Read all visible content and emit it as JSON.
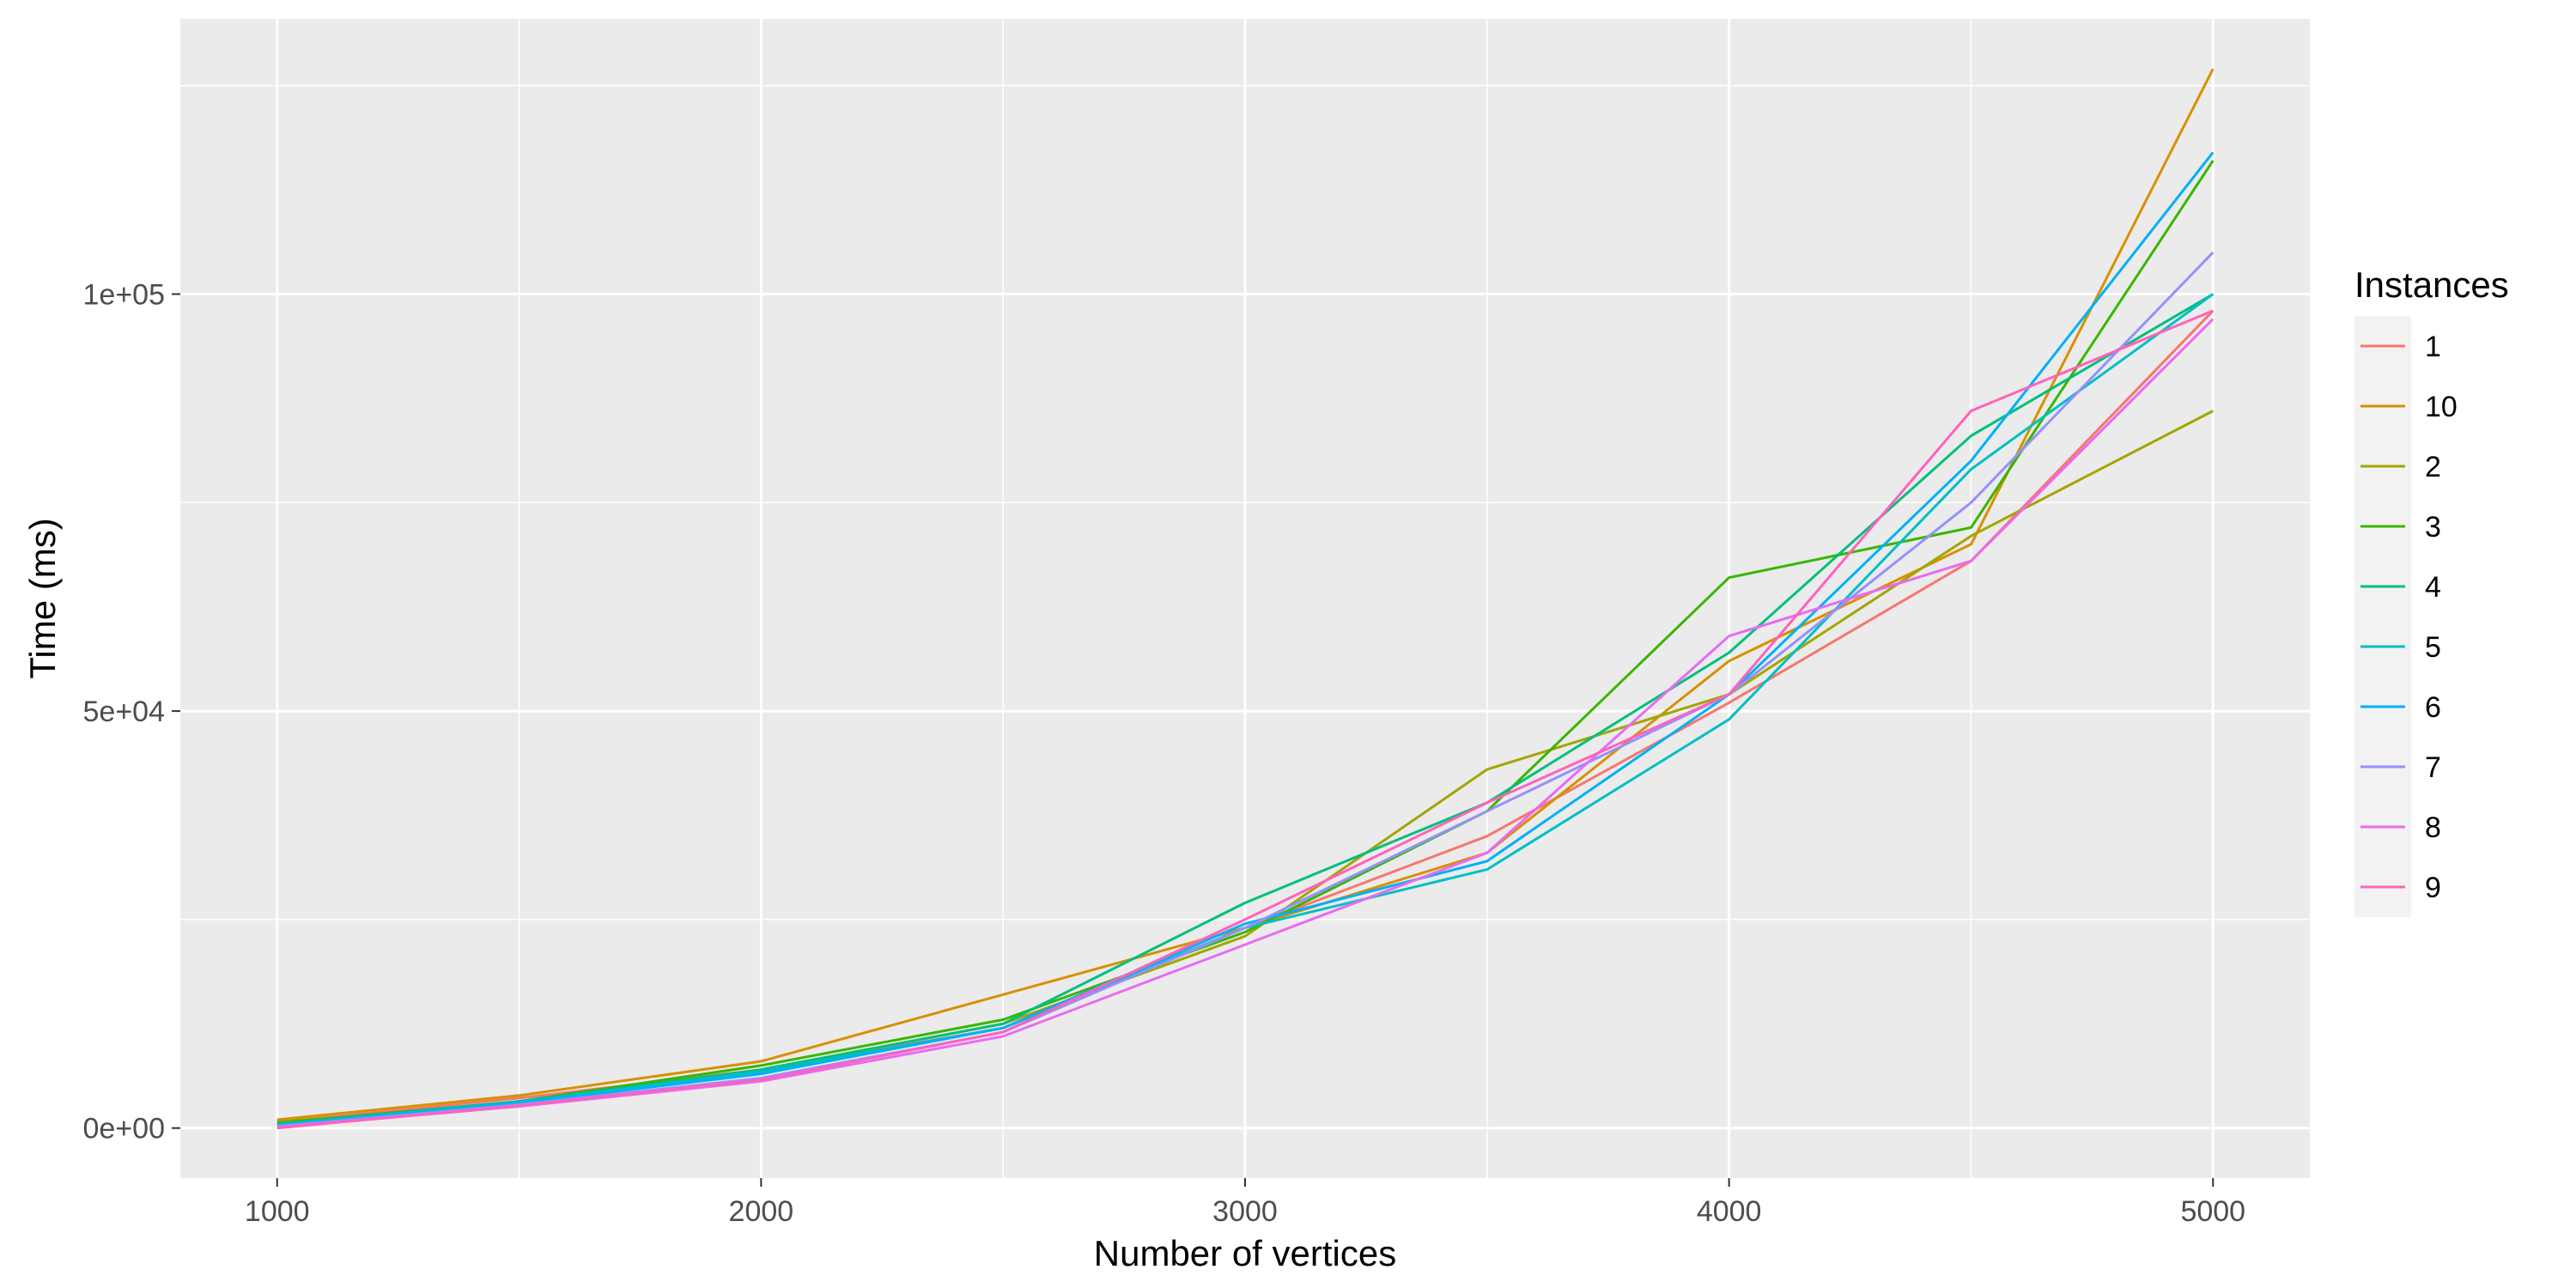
{
  "chart_data": {
    "type": "line",
    "xlabel": "Number of vertices",
    "ylabel": "Time (ms)",
    "xlim": [
      800,
      5200
    ],
    "ylim": [
      -6000,
      133000
    ],
    "x_ticks": [
      1000,
      2000,
      3000,
      4000,
      5000
    ],
    "x_tick_labels": [
      "1000",
      "2000",
      "3000",
      "4000",
      "5000"
    ],
    "y_ticks": [
      0,
      50000,
      100000
    ],
    "y_tick_labels": [
      "0e+00",
      "5e+04",
      "1e+05"
    ],
    "grid": true,
    "legend": {
      "title": "Instances",
      "placement": "right"
    },
    "x": [
      1000,
      1500,
      2000,
      2500,
      3000,
      3500,
      4000,
      4500,
      5000
    ],
    "series": [
      {
        "name": "1",
        "color": "#F8766D",
        "values": [
          700,
          3600,
          7000,
          12000,
          24000,
          35000,
          51000,
          68000,
          98000
        ]
      },
      {
        "name": "10",
        "color": "#D89000",
        "values": [
          1000,
          3900,
          8000,
          16000,
          24000,
          33000,
          56000,
          70000,
          127000
        ]
      },
      {
        "name": "2",
        "color": "#A3A500",
        "values": [
          800,
          2600,
          7000,
          12500,
          23000,
          43000,
          52000,
          71000,
          86000
        ]
      },
      {
        "name": "3",
        "color": "#39B600",
        "values": [
          600,
          3200,
          7500,
          13000,
          23500,
          38000,
          66000,
          72000,
          116000
        ]
      },
      {
        "name": "4",
        "color": "#00BF7D",
        "values": [
          500,
          3200,
          7000,
          12500,
          27000,
          39000,
          57000,
          83000,
          100000
        ]
      },
      {
        "name": "5",
        "color": "#00BFC4",
        "values": [
          400,
          3100,
          6800,
          12000,
          24000,
          31000,
          49000,
          79000,
          100000
        ]
      },
      {
        "name": "6",
        "color": "#00B0F6",
        "values": [
          300,
          3000,
          6500,
          12000,
          24500,
          32000,
          52000,
          80000,
          117000
        ]
      },
      {
        "name": "7",
        "color": "#9590FF",
        "values": [
          200,
          2800,
          6000,
          11500,
          24000,
          38000,
          52000,
          75000,
          105000
        ]
      },
      {
        "name": "8",
        "color": "#E76BF3",
        "values": [
          100,
          2600,
          5600,
          11000,
          22000,
          33000,
          59000,
          68000,
          97000
        ]
      },
      {
        "name": "9",
        "color": "#FF62BC",
        "values": [
          0,
          2700,
          5800,
          11500,
          25000,
          39000,
          52000,
          86000,
          98000
        ]
      }
    ]
  }
}
